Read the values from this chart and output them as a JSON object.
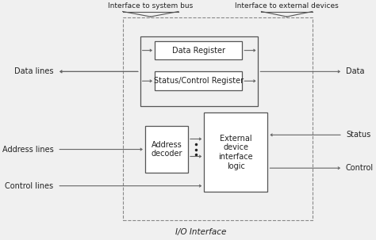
{
  "bg_color": "#f0f0f0",
  "box_color": "#ffffff",
  "box_edge": "#555555",
  "line_color": "#666666",
  "dashed_color": "#888888",
  "text_color": "#222222",
  "title": "I/O Interface",
  "label_sys_bus": "Interface to system bus",
  "label_ext_dev": "Interface to external devices",
  "box_data_register": "Data Register",
  "box_status_register": "Status/Control Register",
  "box_address_decoder": "Address\ndecoder",
  "box_ext_logic": "External\ndevice\ninterface\nlogic",
  "label_data_lines": "Data lines",
  "label_address_lines": "Address lines",
  "label_control_lines": "Control lines",
  "label_data": "Data",
  "label_status": "Status",
  "label_control": "Control",
  "fs_main": 7.0,
  "fs_small": 6.5
}
